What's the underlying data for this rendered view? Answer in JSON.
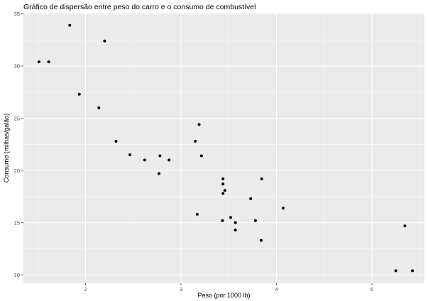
{
  "chart_data": {
    "type": "scatter",
    "title": "Gráfico de dispersão entre peso do carro e o consumo de combustível",
    "xlabel": "Peso (por 1000 lb)",
    "ylabel": "Consumo (milhas/galão)",
    "xlim": [
      1.35,
      5.55
    ],
    "ylim": [
      9.2,
      35.1
    ],
    "x_ticks": [
      2,
      3,
      4,
      5
    ],
    "y_ticks": [
      10,
      15,
      20,
      25,
      30,
      35
    ],
    "grid": true,
    "colors": {
      "panel": "#ebebeb",
      "grid": "#ffffff",
      "point": "#000000"
    },
    "points": [
      {
        "x": 2.62,
        "y": 21.0
      },
      {
        "x": 2.875,
        "y": 21.0
      },
      {
        "x": 2.32,
        "y": 22.8
      },
      {
        "x": 3.215,
        "y": 21.4
      },
      {
        "x": 3.44,
        "y": 18.7
      },
      {
        "x": 3.46,
        "y": 18.1
      },
      {
        "x": 3.57,
        "y": 14.3
      },
      {
        "x": 3.19,
        "y": 24.4
      },
      {
        "x": 3.15,
        "y": 22.8
      },
      {
        "x": 3.44,
        "y": 19.2
      },
      {
        "x": 3.44,
        "y": 17.8
      },
      {
        "x": 4.07,
        "y": 16.4
      },
      {
        "x": 3.73,
        "y": 17.3
      },
      {
        "x": 3.78,
        "y": 15.2
      },
      {
        "x": 5.25,
        "y": 10.4
      },
      {
        "x": 5.424,
        "y": 10.4
      },
      {
        "x": 5.345,
        "y": 14.7
      },
      {
        "x": 2.2,
        "y": 32.4
      },
      {
        "x": 1.615,
        "y": 30.4
      },
      {
        "x": 1.835,
        "y": 33.9
      },
      {
        "x": 2.465,
        "y": 21.5
      },
      {
        "x": 3.52,
        "y": 15.5
      },
      {
        "x": 3.435,
        "y": 15.2
      },
      {
        "x": 3.84,
        "y": 13.3
      },
      {
        "x": 3.845,
        "y": 19.2
      },
      {
        "x": 1.935,
        "y": 27.3
      },
      {
        "x": 2.14,
        "y": 26.0
      },
      {
        "x": 1.513,
        "y": 30.4
      },
      {
        "x": 3.17,
        "y": 15.8
      },
      {
        "x": 2.77,
        "y": 19.7
      },
      {
        "x": 3.57,
        "y": 15.0
      },
      {
        "x": 2.78,
        "y": 21.4
      }
    ]
  }
}
